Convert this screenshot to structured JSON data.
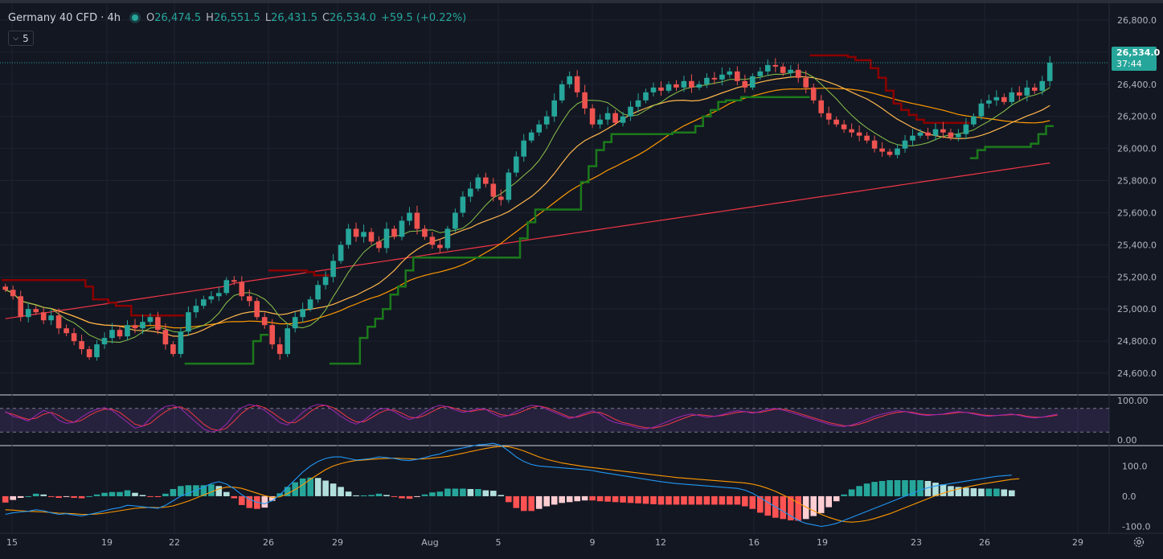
{
  "header": {
    "symbol": "Germany 40 CFD · 4h",
    "open_label": "O",
    "open": "26,474.5",
    "high_label": "H",
    "high": "26,551.5",
    "low_label": "L",
    "low": "26,431.5",
    "close_label": "C",
    "close": "26,534.0",
    "change": "+59.5 (+0.22%)",
    "indicators_count": "5"
  },
  "price_tag": {
    "price": "26,534.0",
    "countdown": "37:44"
  },
  "colors": {
    "background": "#131722",
    "up": "#26a69a",
    "down": "#ef5350",
    "ma_fast": "#8bc34a",
    "ma_mid": "#ffb74d",
    "ma_slow": "#ff9800",
    "ma_long": "#f23645",
    "stop_up": "#1b7a1b",
    "stop_down": "#8b0000",
    "stoch_k": "#9c27b0",
    "stoch_d": "#f23645",
    "macd": "#2196f3",
    "signal": "#ff9800"
  },
  "settings_icon": "gear-icon",
  "chart_data": [
    {
      "type": "candlestick",
      "title": "Germany 40 CFD · 4h",
      "price_axis_ticks": [
        "26,800.0",
        "26,600.0",
        "26,400.0",
        "26,200.0",
        "26,000.0",
        "25,800.0",
        "25,600.0",
        "25,400.0",
        "25,200.0",
        "25,000.0",
        "24,800.0",
        "24,600.0"
      ],
      "ylim": [
        24470,
        26900
      ],
      "x_tick_labels": [
        "15",
        "19",
        "22",
        "26",
        "29",
        "Aug",
        "5",
        "9",
        "12",
        "16",
        "19",
        "23",
        "26",
        "29"
      ],
      "last_price": 26534,
      "grid": true,
      "series": [
        {
          "name": "moving-average-fast",
          "kind": "line"
        },
        {
          "name": "moving-average-mid",
          "kind": "line"
        },
        {
          "name": "moving-average-slow",
          "kind": "line"
        },
        {
          "name": "moving-average-long",
          "kind": "line"
        },
        {
          "name": "trailing-stop",
          "kind": "step"
        }
      ],
      "closes_approx": [
        25120,
        25080,
        24950,
        25000,
        24980,
        24930,
        24960,
        24880,
        24850,
        24800,
        24750,
        24700,
        24780,
        24820,
        24870,
        24830,
        24900,
        24880,
        24920,
        24950,
        24870,
        24780,
        24720,
        24860,
        24980,
        25020,
        25060,
        25080,
        25100,
        25180,
        25170,
        25080,
        25050,
        24950,
        24900,
        24780,
        24720,
        24880,
        24950,
        25000,
        25060,
        25150,
        25200,
        25300,
        25400,
        25500,
        25450,
        25480,
        25420,
        25380,
        25500,
        25450,
        25550,
        25600,
        25500,
        25450,
        25400,
        25380,
        25500,
        25600,
        25700,
        25750,
        25820,
        25780,
        25700,
        25680,
        25850,
        25950,
        26050,
        26100,
        26150,
        26200,
        26300,
        26400,
        26450,
        26350,
        26250,
        26150,
        26180,
        26220,
        26160,
        26200,
        26260,
        26300,
        26350,
        26380,
        26360,
        26400,
        26380,
        26420,
        26380,
        26400,
        26440,
        26430,
        26460,
        26480,
        26420,
        26380,
        26450,
        26480,
        26520,
        26510,
        26470,
        26490,
        26440,
        26380,
        26300,
        26220,
        26180,
        26150,
        26120,
        26100,
        26080,
        26050,
        26000,
        25980,
        25960,
        26000,
        26050,
        26080,
        26100,
        26080,
        26120,
        26100,
        26070,
        26090,
        26150,
        26200,
        26280,
        26300,
        26320,
        26290,
        26350,
        26330,
        26380,
        26360,
        26420,
        26534
      ]
    },
    {
      "type": "line",
      "title": "",
      "panel": "oscillator",
      "ylim": [
        0,
        100
      ],
      "y_tick_labels": [
        "100.00",
        "0.00"
      ],
      "levels": [
        80,
        20
      ],
      "series": [
        {
          "name": "oscillator-k",
          "values": [
            72,
            60,
            55,
            48,
            62,
            75,
            68,
            50,
            42,
            45,
            58,
            70,
            78,
            82,
            75,
            60,
            45,
            30,
            35,
            55,
            72,
            85,
            88,
            80,
            62,
            45,
            28,
            20,
            25,
            40,
            65,
            82,
            90,
            86,
            75,
            60,
            44,
            38,
            52,
            70,
            84,
            90,
            88,
            75,
            60,
            48,
            40,
            50,
            65,
            78,
            80,
            72,
            60,
            52,
            58,
            70,
            82,
            88,
            84,
            76,
            70,
            74,
            80,
            78,
            66,
            58,
            62,
            72,
            82,
            88,
            86,
            78,
            70,
            62,
            54,
            60,
            68,
            74,
            66,
            52,
            44,
            40,
            36,
            30,
            28,
            32,
            40,
            48,
            56,
            62,
            66,
            62,
            58,
            60,
            64,
            70,
            74,
            72,
            68,
            72,
            78,
            80,
            76,
            70,
            64,
            58,
            52,
            46,
            40,
            36,
            34,
            38,
            44,
            52,
            60,
            66,
            70,
            74,
            72,
            68,
            64,
            62,
            64,
            66,
            70,
            72,
            70,
            66,
            62,
            60,
            62,
            64,
            66,
            62,
            58,
            56,
            58,
            62,
            66
          ]
        },
        {
          "name": "oscillator-d",
          "values": [
            70,
            65,
            58,
            52,
            55,
            65,
            70,
            62,
            50,
            45,
            50,
            62,
            72,
            78,
            78,
            70,
            55,
            40,
            35,
            42,
            58,
            72,
            82,
            84,
            75,
            58,
            40,
            28,
            24,
            30,
            48,
            68,
            82,
            88,
            82,
            70,
            56,
            44,
            44,
            56,
            72,
            84,
            88,
            82,
            70,
            56,
            46,
            46,
            56,
            68,
            76,
            76,
            68,
            58,
            56,
            62,
            72,
            82,
            85,
            80,
            74,
            72,
            76,
            78,
            72,
            64,
            62,
            66,
            74,
            82,
            86,
            82,
            74,
            66,
            58,
            58,
            64,
            70,
            70,
            62,
            52,
            44,
            40,
            35,
            31,
            30,
            34,
            40,
            48,
            55,
            62,
            64,
            62,
            60,
            62,
            66,
            70,
            72,
            70,
            70,
            74,
            78,
            78,
            74,
            68,
            62,
            56,
            50,
            44,
            40,
            36,
            36,
            40,
            46,
            54,
            60,
            66,
            70,
            72,
            70,
            66,
            64,
            64,
            65,
            67,
            70,
            70,
            68,
            64,
            62,
            62,
            63,
            64,
            64,
            60,
            58,
            58,
            60,
            63
          ]
        }
      ]
    },
    {
      "type": "line",
      "title": "",
      "panel": "momentum",
      "ylim": [
        -120,
        165
      ],
      "y_tick_labels": [
        "100.0",
        "0.0",
        "-100.0"
      ],
      "series": [
        {
          "name": "momentum-line",
          "values": [
            -60,
            -55,
            -52,
            -50,
            -45,
            -48,
            -55,
            -60,
            -58,
            -62,
            -65,
            -60,
            -55,
            -48,
            -42,
            -38,
            -30,
            -32,
            -35,
            -38,
            -40,
            -30,
            -15,
            0,
            10,
            20,
            30,
            42,
            48,
            40,
            25,
            5,
            -10,
            -20,
            -25,
            -15,
            5,
            30,
            55,
            80,
            100,
            115,
            125,
            130,
            130,
            125,
            120,
            122,
            125,
            130,
            128,
            125,
            120,
            118,
            122,
            128,
            135,
            140,
            150,
            155,
            160,
            165,
            170,
            172,
            175,
            168,
            150,
            130,
            115,
            105,
            100,
            98,
            96,
            94,
            92,
            90,
            88,
            85,
            80,
            76,
            72,
            68,
            64,
            60,
            56,
            52,
            48,
            45,
            42,
            40,
            38,
            36,
            34,
            32,
            30,
            28,
            26,
            20,
            10,
            -5,
            -20,
            -35,
            -50,
            -65,
            -80,
            -90,
            -95,
            -100,
            -96,
            -90,
            -80,
            -70,
            -60,
            -50,
            -40,
            -30,
            -20,
            -10,
            0,
            10,
            20,
            28,
            34,
            38,
            42,
            46,
            50,
            54,
            58,
            62,
            66,
            68,
            70
          ]
        },
        {
          "name": "signal-line",
          "values": [
            -45,
            -46,
            -48,
            -50,
            -51,
            -52,
            -54,
            -56,
            -57,
            -58,
            -60,
            -60,
            -59,
            -56,
            -52,
            -48,
            -44,
            -40,
            -38,
            -37,
            -38,
            -36,
            -32,
            -24,
            -16,
            -6,
            4,
            14,
            24,
            30,
            30,
            26,
            18,
            10,
            2,
            -4,
            -2,
            8,
            22,
            38,
            56,
            72,
            88,
            100,
            108,
            114,
            118,
            120,
            122,
            124,
            125,
            126,
            125,
            124,
            123,
            124,
            126,
            129,
            132,
            137,
            142,
            148,
            153,
            158,
            162,
            165,
            164,
            158,
            150,
            140,
            130,
            122,
            116,
            110,
            106,
            102,
            98,
            95,
            92,
            89,
            86,
            83,
            80,
            77,
            74,
            71,
            68,
            65,
            62,
            60,
            58,
            56,
            54,
            52,
            50,
            48,
            46,
            44,
            40,
            34,
            26,
            16,
            4,
            -8,
            -22,
            -36,
            -48,
            -60,
            -70,
            -78,
            -84,
            -86,
            -84,
            -80,
            -74,
            -66,
            -58,
            -48,
            -38,
            -28,
            -18,
            -8,
            2,
            10,
            18,
            24,
            30,
            35,
            40,
            44,
            48,
            52,
            56,
            58
          ]
        }
      ]
    }
  ]
}
